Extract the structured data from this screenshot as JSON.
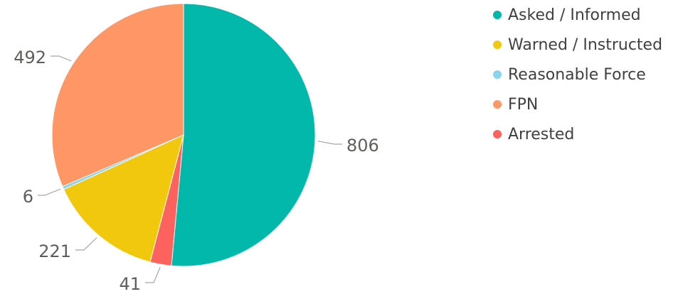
{
  "chart_data": {
    "type": "pie",
    "title": "",
    "categories": [
      "Asked / Informed",
      "Warned / Instructed",
      "Reasonable Force",
      "FPN",
      "Arrested"
    ],
    "values": [
      806,
      221,
      6,
      492,
      41
    ],
    "colors": [
      "#01B8AA",
      "#F2C80F",
      "#8AD4EB",
      "#FE9666",
      "#FD625E"
    ],
    "legend_position": "right",
    "data_labels": [
      "806",
      "221",
      "6",
      "492",
      "41"
    ]
  }
}
